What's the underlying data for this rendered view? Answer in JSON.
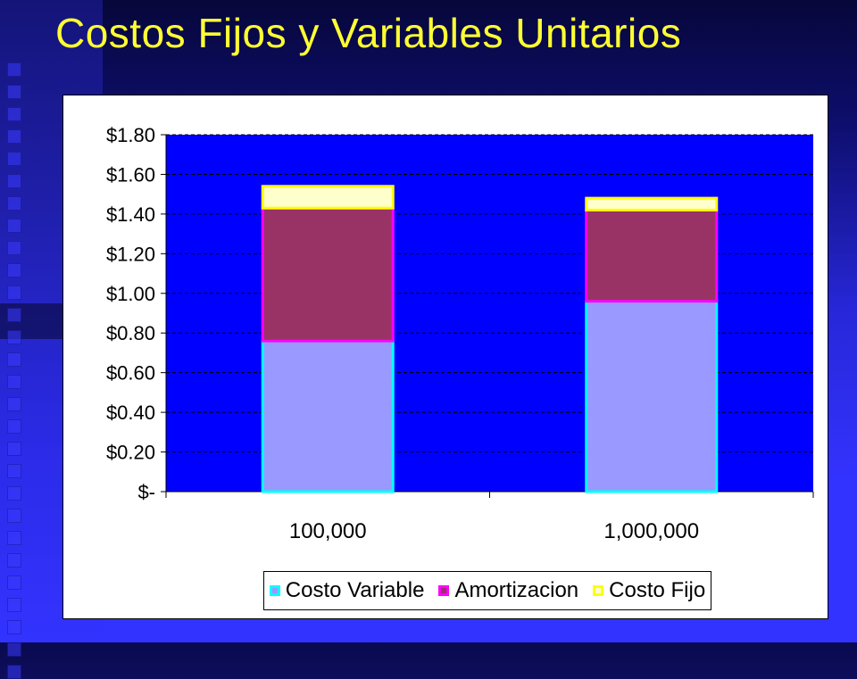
{
  "title": "Costos Fijos y Variables Unitarios",
  "colors": {
    "plot_bg": "#0000ff",
    "costo_variable_fill": "#9999ff",
    "costo_variable_border": "#00ffff",
    "amortizacion_fill": "#993366",
    "amortizacion_border": "#ff00ff",
    "costo_fijo_fill": "#ffffcc",
    "costo_fijo_border": "#ffff00"
  },
  "chart_data": {
    "type": "bar",
    "stacked": true,
    "categories": [
      "100,000",
      "1,000,000"
    ],
    "series": [
      {
        "name": "Costo Variable",
        "values": [
          0.76,
          0.96
        ]
      },
      {
        "name": "Amortizacion",
        "values": [
          0.67,
          0.46
        ]
      },
      {
        "name": "Costo Fijo",
        "values": [
          0.11,
          0.06
        ]
      }
    ],
    "ylim": [
      0,
      1.8
    ],
    "yticks": [
      0,
      0.2,
      0.4,
      0.6,
      0.8,
      1.0,
      1.2,
      1.4,
      1.6,
      1.8
    ],
    "ytick_labels": [
      "$-",
      "$0.20",
      "$0.40",
      "$0.60",
      "$0.80",
      "$1.00",
      "$1.20",
      "$1.40",
      "$1.60",
      "$1.80"
    ],
    "grid": true,
    "legend_position": "bottom"
  }
}
